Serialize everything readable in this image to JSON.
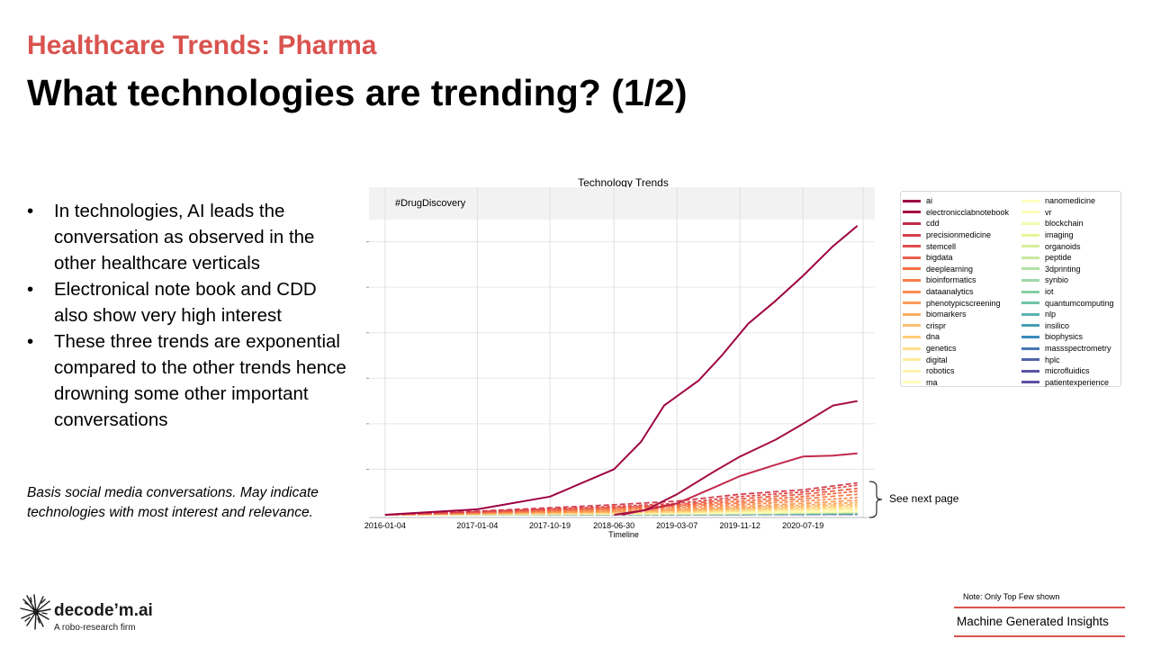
{
  "header": {
    "subtitle": "Healthcare Trends: Pharma",
    "title": "What technologies are trending? (1/2)"
  },
  "bullets": [
    "In technologies, AI leads the conversation as observed in the other healthcare verticals",
    "Electronical note book and CDD also show very high interest",
    "These three trends are exponential compared to the other trends hence drowning some other important conversations"
  ],
  "basis_note": "Basis social media conversations. May indicate technologies with most interest and relevance.",
  "side_note": "See next page",
  "footer": {
    "brand": "decode’m.ai",
    "tagline": "A robo-research firm",
    "note": "Note: Only Top Few shown",
    "badge": "Machine Generated Insights"
  },
  "colors": {
    "accent": "#d9534f"
  },
  "chart_data": {
    "type": "line",
    "title": "Technology Trends",
    "annotation": "#DrugDiscovery",
    "xlabel": "Timeline",
    "ylabel": "",
    "x_ticks": [
      "2016-01-04",
      "2017-01-04",
      "2017-10-19",
      "2018-06-30",
      "2019-03-07",
      "2019-11-12",
      "2020-07-19"
    ],
    "x_range": [
      "2015-11-01",
      "2021-04-30"
    ],
    "ylim": [
      0,
      7
    ],
    "y_ticks_labeled": false,
    "grid": true,
    "legend_position": "outside-right",
    "series": [
      {
        "name": "ai",
        "color": "#9e0142",
        "points": [
          [
            "2016-01-04",
            0
          ],
          [
            "2017-01-04",
            0.12
          ],
          [
            "2017-10-19",
            0.4
          ],
          [
            "2018-06-30",
            1.0
          ],
          [
            "2018-10-15",
            1.6
          ],
          [
            "2019-01-15",
            2.4
          ],
          [
            "2019-06-01",
            2.95
          ],
          [
            "2019-09-01",
            3.5
          ],
          [
            "2019-12-15",
            4.2
          ],
          [
            "2020-04-01",
            4.7
          ],
          [
            "2020-07-19",
            5.25
          ],
          [
            "2020-11-15",
            5.9
          ],
          [
            "2021-02-20",
            6.35
          ]
        ]
      },
      {
        "name": "electronicclabnotebook",
        "color": "#a50f44",
        "points": [
          [
            "2018-07-01",
            0
          ],
          [
            "2018-11-01",
            0.1
          ],
          [
            "2019-03-07",
            0.45
          ],
          [
            "2019-08-01",
            0.95
          ],
          [
            "2019-11-12",
            1.28
          ],
          [
            "2020-04-01",
            1.65
          ],
          [
            "2020-07-19",
            2.0
          ],
          [
            "2020-11-15",
            2.4
          ],
          [
            "2021-02-20",
            2.5
          ]
        ]
      },
      {
        "name": "cdd",
        "color": "#c2294a",
        "points": [
          [
            "2018-08-01",
            0
          ],
          [
            "2019-03-07",
            0.25
          ],
          [
            "2019-08-01",
            0.6
          ],
          [
            "2019-11-12",
            0.85
          ],
          [
            "2020-04-01",
            1.1
          ],
          [
            "2020-07-19",
            1.28
          ],
          [
            "2020-11-15",
            1.3
          ],
          [
            "2021-02-20",
            1.35
          ]
        ]
      },
      {
        "name": "precisionmedicine",
        "color": "#d53e4f",
        "points": [
          [
            "2016-01-04",
            0
          ],
          [
            "2017-01-04",
            0.08
          ],
          [
            "2018-06-30",
            0.22
          ],
          [
            "2019-03-07",
            0.3
          ],
          [
            "2019-11-12",
            0.45
          ],
          [
            "2020-07-19",
            0.55
          ],
          [
            "2021-02-20",
            0.7
          ]
        ]
      },
      {
        "name": "stemcell",
        "color": "#df4e4b",
        "points": [
          [
            "2016-01-04",
            0
          ],
          [
            "2017-01-04",
            0.07
          ],
          [
            "2018-06-30",
            0.18
          ],
          [
            "2019-03-07",
            0.25
          ],
          [
            "2019-11-12",
            0.4
          ],
          [
            "2020-07-19",
            0.5
          ],
          [
            "2021-02-20",
            0.65
          ]
        ]
      },
      {
        "name": "bigdata",
        "color": "#e8604e",
        "points": [
          [
            "2016-01-04",
            0
          ],
          [
            "2017-01-04",
            0.06
          ],
          [
            "2018-06-30",
            0.16
          ],
          [
            "2019-03-07",
            0.22
          ],
          [
            "2019-11-12",
            0.35
          ],
          [
            "2020-07-19",
            0.45
          ],
          [
            "2021-02-20",
            0.58
          ]
        ]
      },
      {
        "name": "deeplearning",
        "color": "#f46d43",
        "points": [
          [
            "2016-01-04",
            0
          ],
          [
            "2017-01-04",
            0.05
          ],
          [
            "2018-06-30",
            0.14
          ],
          [
            "2019-03-07",
            0.2
          ],
          [
            "2019-11-12",
            0.3
          ],
          [
            "2020-07-19",
            0.4
          ],
          [
            "2021-02-20",
            0.52
          ]
        ]
      },
      {
        "name": "bioinformatics",
        "color": "#f67d4a",
        "points": [
          [
            "2016-01-04",
            0
          ],
          [
            "2017-01-04",
            0.05
          ],
          [
            "2018-06-30",
            0.12
          ],
          [
            "2019-03-07",
            0.18
          ],
          [
            "2019-11-12",
            0.26
          ],
          [
            "2020-07-19",
            0.35
          ],
          [
            "2021-02-20",
            0.45
          ]
        ]
      },
      {
        "name": "dataanalytics",
        "color": "#f88d52",
        "points": [
          [
            "2016-01-04",
            0
          ],
          [
            "2017-01-04",
            0.04
          ],
          [
            "2018-06-30",
            0.1
          ],
          [
            "2019-03-07",
            0.15
          ],
          [
            "2019-11-12",
            0.22
          ],
          [
            "2020-07-19",
            0.3
          ],
          [
            "2021-02-20",
            0.38
          ]
        ]
      },
      {
        "name": "phenotypicscreening",
        "color": "#fa9d5a",
        "points": [
          [
            "2016-01-04",
            0
          ],
          [
            "2017-01-04",
            0.03
          ],
          [
            "2018-06-30",
            0.08
          ],
          [
            "2019-03-07",
            0.12
          ],
          [
            "2019-11-12",
            0.18
          ],
          [
            "2020-07-19",
            0.25
          ],
          [
            "2021-02-20",
            0.32
          ]
        ]
      },
      {
        "name": "biomarkers",
        "color": "#fdae61",
        "points": [
          [
            "2016-01-04",
            0
          ],
          [
            "2017-01-04",
            0.03
          ],
          [
            "2018-06-30",
            0.07
          ],
          [
            "2019-03-07",
            0.1
          ],
          [
            "2019-11-12",
            0.15
          ],
          [
            "2020-07-19",
            0.21
          ],
          [
            "2021-02-20",
            0.27
          ]
        ]
      },
      {
        "name": "crispr",
        "color": "#fdbe70",
        "points": [
          [
            "2016-01-04",
            0
          ],
          [
            "2017-01-04",
            0.02
          ],
          [
            "2018-06-30",
            0.06
          ],
          [
            "2019-03-07",
            0.09
          ],
          [
            "2019-11-12",
            0.13
          ],
          [
            "2020-07-19",
            0.18
          ],
          [
            "2021-02-20",
            0.23
          ]
        ]
      },
      {
        "name": "dna",
        "color": "#fdcd7b",
        "points": [
          [
            "2016-01-04",
            0
          ],
          [
            "2017-01-04",
            0.02
          ],
          [
            "2018-06-30",
            0.05
          ],
          [
            "2019-03-07",
            0.07
          ],
          [
            "2019-11-12",
            0.11
          ],
          [
            "2020-07-19",
            0.15
          ],
          [
            "2021-02-20",
            0.2
          ]
        ]
      },
      {
        "name": "genetics",
        "color": "#fee08b",
        "points": [
          [
            "2016-01-04",
            0
          ],
          [
            "2017-01-04",
            0.02
          ],
          [
            "2018-06-30",
            0.04
          ],
          [
            "2019-03-07",
            0.06
          ],
          [
            "2019-11-12",
            0.09
          ],
          [
            "2020-07-19",
            0.13
          ],
          [
            "2021-02-20",
            0.17
          ]
        ]
      },
      {
        "name": "digital",
        "color": "#feea9a",
        "points": [
          [
            "2016-01-04",
            0
          ],
          [
            "2017-01-04",
            0.01
          ],
          [
            "2018-06-30",
            0.035
          ],
          [
            "2019-03-07",
            0.05
          ],
          [
            "2019-11-12",
            0.08
          ],
          [
            "2020-07-19",
            0.11
          ],
          [
            "2021-02-20",
            0.14
          ]
        ]
      },
      {
        "name": "robotics",
        "color": "#fef3ab",
        "points": [
          [
            "2016-01-04",
            0
          ],
          [
            "2017-01-04",
            0.01
          ],
          [
            "2018-06-30",
            0.03
          ],
          [
            "2019-03-07",
            0.045
          ],
          [
            "2019-11-12",
            0.07
          ],
          [
            "2020-07-19",
            0.09
          ],
          [
            "2021-02-20",
            0.12
          ]
        ]
      },
      {
        "name": "ma",
        "color": "#fffbb9",
        "points": [
          [
            "2016-01-04",
            0
          ],
          [
            "2017-01-04",
            0.01
          ],
          [
            "2018-06-30",
            0.025
          ],
          [
            "2019-03-07",
            0.04
          ],
          [
            "2019-11-12",
            0.06
          ],
          [
            "2020-07-19",
            0.08
          ],
          [
            "2021-02-20",
            0.1
          ]
        ]
      },
      {
        "name": "nanomedicine",
        "color": "#fffebe",
        "points": [
          [
            "2016-01-04",
            0
          ],
          [
            "2018-06-30",
            0.02
          ],
          [
            "2019-11-12",
            0.05
          ],
          [
            "2021-02-20",
            0.09
          ]
        ]
      },
      {
        "name": "vr",
        "color": "#fbfdb8",
        "points": [
          [
            "2016-01-04",
            0
          ],
          [
            "2018-06-30",
            0.02
          ],
          [
            "2019-11-12",
            0.045
          ],
          [
            "2021-02-20",
            0.08
          ]
        ]
      },
      {
        "name": "blockchain",
        "color": "#f3faac",
        "points": [
          [
            "2016-01-04",
            0
          ],
          [
            "2018-06-30",
            0.02
          ],
          [
            "2019-11-12",
            0.04
          ],
          [
            "2021-02-20",
            0.07
          ]
        ]
      },
      {
        "name": "imaging",
        "color": "#e6f598",
        "points": [
          [
            "2016-01-04",
            0
          ],
          [
            "2018-06-30",
            0.015
          ],
          [
            "2019-11-12",
            0.035
          ],
          [
            "2021-02-20",
            0.065
          ]
        ]
      },
      {
        "name": "organoids",
        "color": "#d7ef9b",
        "points": [
          [
            "2016-01-04",
            0
          ],
          [
            "2018-06-30",
            0.015
          ],
          [
            "2019-11-12",
            0.03
          ],
          [
            "2021-02-20",
            0.06
          ]
        ]
      },
      {
        "name": "peptide",
        "color": "#c7e9a0",
        "points": [
          [
            "2016-01-04",
            0
          ],
          [
            "2018-06-30",
            0.012
          ],
          [
            "2019-11-12",
            0.028
          ],
          [
            "2021-02-20",
            0.055
          ]
        ]
      },
      {
        "name": "3dprinting",
        "color": "#b3e0a3",
        "points": [
          [
            "2016-01-04",
            0
          ],
          [
            "2018-06-30",
            0.01
          ],
          [
            "2019-11-12",
            0.025
          ],
          [
            "2021-02-20",
            0.05
          ]
        ]
      },
      {
        "name": "synbio",
        "color": "#9dd7a4",
        "points": [
          [
            "2016-01-04",
            0
          ],
          [
            "2018-06-30",
            0.01
          ],
          [
            "2019-11-12",
            0.022
          ],
          [
            "2021-02-20",
            0.045
          ]
        ]
      },
      {
        "name": "iot",
        "color": "#86cea4",
        "points": [
          [
            "2016-01-04",
            0
          ],
          [
            "2018-06-30",
            0.01
          ],
          [
            "2019-11-12",
            0.02
          ],
          [
            "2021-02-20",
            0.04
          ]
        ]
      },
      {
        "name": "quantumcomputing",
        "color": "#6fc4a5",
        "points": [
          [
            "2016-01-04",
            0
          ],
          [
            "2018-06-30",
            0.008
          ],
          [
            "2019-11-12",
            0.018
          ],
          [
            "2021-02-20",
            0.035
          ]
        ]
      },
      {
        "name": "nlp",
        "color": "#5ab3ad",
        "points": [
          [
            "2016-01-04",
            0
          ],
          [
            "2018-06-30",
            0.008
          ],
          [
            "2019-11-12",
            0.016
          ],
          [
            "2021-02-20",
            0.03
          ]
        ]
      },
      {
        "name": "insilico",
        "color": "#489fb3",
        "points": [
          [
            "2016-01-04",
            0
          ],
          [
            "2018-06-30",
            0.007
          ],
          [
            "2019-11-12",
            0.014
          ],
          [
            "2021-02-20",
            0.027
          ]
        ]
      },
      {
        "name": "biophysics",
        "color": "#3a8bba",
        "points": [
          [
            "2016-01-04",
            0
          ],
          [
            "2018-06-30",
            0.006
          ],
          [
            "2019-11-12",
            0.012
          ],
          [
            "2021-02-20",
            0.024
          ]
        ]
      },
      {
        "name": "massspectrometry",
        "color": "#4577b3",
        "points": [
          [
            "2016-01-04",
            0
          ],
          [
            "2018-06-30",
            0.005
          ],
          [
            "2019-11-12",
            0.01
          ],
          [
            "2021-02-20",
            0.02
          ]
        ]
      },
      {
        "name": "hplc",
        "color": "#5065ab",
        "points": [
          [
            "2016-01-04",
            0
          ],
          [
            "2018-06-30",
            0.004
          ],
          [
            "2019-11-12",
            0.008
          ],
          [
            "2021-02-20",
            0.017
          ]
        ]
      },
      {
        "name": "microfluidics",
        "color": "#5b53a4",
        "points": [
          [
            "2016-01-04",
            0
          ],
          [
            "2018-06-30",
            0.003
          ],
          [
            "2019-11-12",
            0.006
          ],
          [
            "2021-02-20",
            0.014
          ]
        ]
      },
      {
        "name": "patientexperience",
        "color": "#5e4fa2",
        "points": [
          [
            "2016-01-04",
            0
          ],
          [
            "2018-06-30",
            0.002
          ],
          [
            "2019-11-12",
            0.005
          ],
          [
            "2021-02-20",
            0.012
          ]
        ]
      }
    ]
  }
}
